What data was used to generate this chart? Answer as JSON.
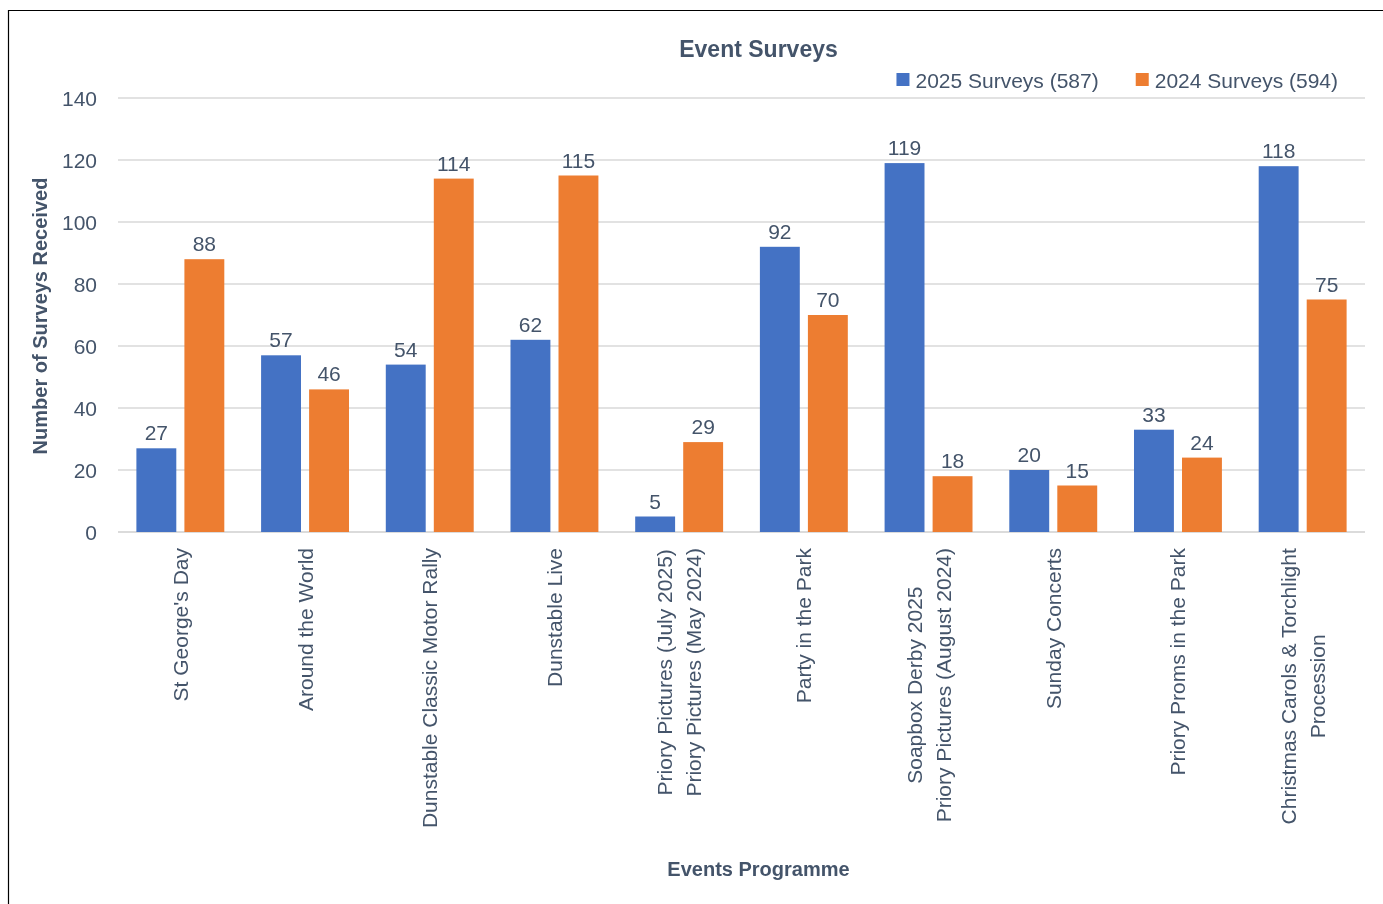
{
  "chart_data": {
    "type": "bar",
    "title": "Event Surveys",
    "xlabel": "Events Programme",
    "ylabel": "Number of Surveys Received",
    "categories": [
      "St George's Day",
      "Around the World",
      "Dunstable Classic Motor Rally",
      "Dunstable Live",
      "Priory Pictures (July 2025)\nPriory Pictures (May 2024)",
      "Party in the Park",
      "Soapbox Derby 2025\nPriory Pictures (August 2024)",
      "Sunday Concerts",
      "Priory Proms in the Park",
      "Christmas Carols & Torchlight\nProcession"
    ],
    "series": [
      {
        "name": "2025 Surveys (587)",
        "color": "#4472c4",
        "values": [
          27,
          57,
          54,
          62,
          5,
          92,
          119,
          20,
          33,
          118
        ]
      },
      {
        "name": "2024 Surveys (594)",
        "color": "#ed7d31",
        "values": [
          88,
          46,
          114,
          115,
          29,
          70,
          18,
          15,
          24,
          75
        ]
      }
    ],
    "ylim": [
      0,
      140
    ],
    "yticks": [
      0,
      20,
      40,
      60,
      80,
      100,
      120,
      140
    ],
    "grid": "y",
    "legend": "top right",
    "data_labels": true
  }
}
